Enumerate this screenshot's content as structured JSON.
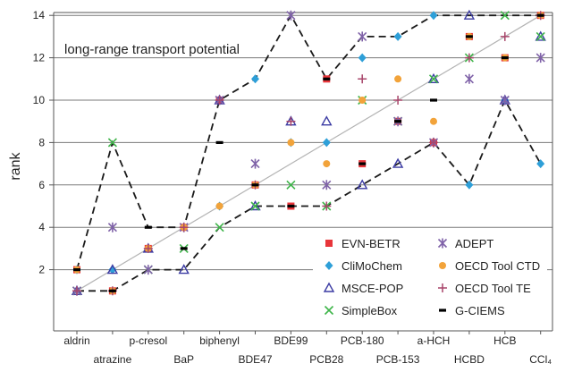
{
  "chart_data": {
    "type": "scatter",
    "title": "long-range transport potential",
    "ylabel": "rank",
    "xlabel": "",
    "ylim": [
      0,
      15
    ],
    "yticks": [
      2,
      4,
      6,
      8,
      10,
      12,
      14
    ],
    "grid": "horizontal",
    "legend_position": "bottom-right",
    "categories": [
      "aldrin",
      "atrazine",
      "p-cresol",
      "BaP",
      "biphenyl",
      "BDE47",
      "BDE99",
      "PCB28",
      "PCB-180",
      "PCB-153",
      "a-HCH",
      "HCBD",
      "HCB",
      "CCl4"
    ],
    "category_display": [
      "aldrin",
      "atrazine",
      "p-cresol",
      "BaP",
      "biphenyl",
      "BDE47",
      "BDE99",
      "PCB28",
      "PCB-180",
      "PCB-153",
      "a-HCH",
      "HCBD",
      "HCB",
      "CCl₄"
    ],
    "median_line": {
      "from": [
        1,
        1
      ],
      "to": [
        14,
        14
      ],
      "color": "#b3b3b3"
    },
    "envelopes": {
      "max": [
        2,
        8,
        4,
        4,
        10,
        11,
        14,
        11,
        13,
        13,
        14,
        14,
        14,
        14
      ],
      "min": [
        1,
        1,
        2,
        2,
        4,
        5,
        5,
        5,
        6,
        7,
        8,
        6,
        10,
        7
      ],
      "color": "#1a1a1a"
    },
    "series": [
      {
        "name": "EVN-BETR",
        "marker": "square",
        "color": "#e8353a",
        "values": [
          2,
          1,
          3,
          4,
          10,
          6,
          5,
          11,
          7,
          9,
          8,
          13,
          12,
          14
        ]
      },
      {
        "name": "CliMoChem",
        "marker": "diamond",
        "color": "#2e9fd8",
        "values": [
          2,
          2,
          3,
          4,
          5,
          11,
          8,
          8,
          12,
          13,
          14,
          6,
          10,
          7
        ]
      },
      {
        "name": "MSCE-POP",
        "marker": "triangle",
        "color": "#3b3ba3",
        "values": [
          1,
          2,
          3,
          2,
          10,
          5,
          9,
          9,
          6,
          7,
          11,
          14,
          10,
          13
        ]
      },
      {
        "name": "SimpleBox",
        "marker": "x",
        "color": "#3fb54a",
        "values": [
          1,
          8,
          2,
          3,
          4,
          5,
          6,
          5,
          10,
          9,
          11,
          12,
          14,
          13
        ]
      },
      {
        "name": "ADEPT",
        "marker": "asterisk",
        "color": "#7f62a8",
        "values": [
          1,
          4,
          2,
          4,
          10,
          7,
          14,
          6,
          13,
          9,
          8,
          11,
          10,
          12
        ]
      },
      {
        "name": "OECD Tool CTD",
        "marker": "circle",
        "color": "#f2a33a",
        "values": [
          2,
          1,
          3,
          4,
          5,
          6,
          8,
          7,
          10,
          11,
          9,
          13,
          12,
          14
        ]
      },
      {
        "name": "OECD Tool TE",
        "marker": "plus",
        "color": "#a8456a",
        "values": [
          1,
          1,
          3,
          4,
          10,
          6,
          9,
          5,
          11,
          10,
          8,
          12,
          13,
          14
        ]
      },
      {
        "name": "G-CIEMS",
        "marker": "dash",
        "color": "#000000",
        "values": [
          2,
          1,
          4,
          3,
          8,
          6,
          5,
          11,
          7,
          9,
          10,
          13,
          12,
          14
        ]
      }
    ]
  }
}
